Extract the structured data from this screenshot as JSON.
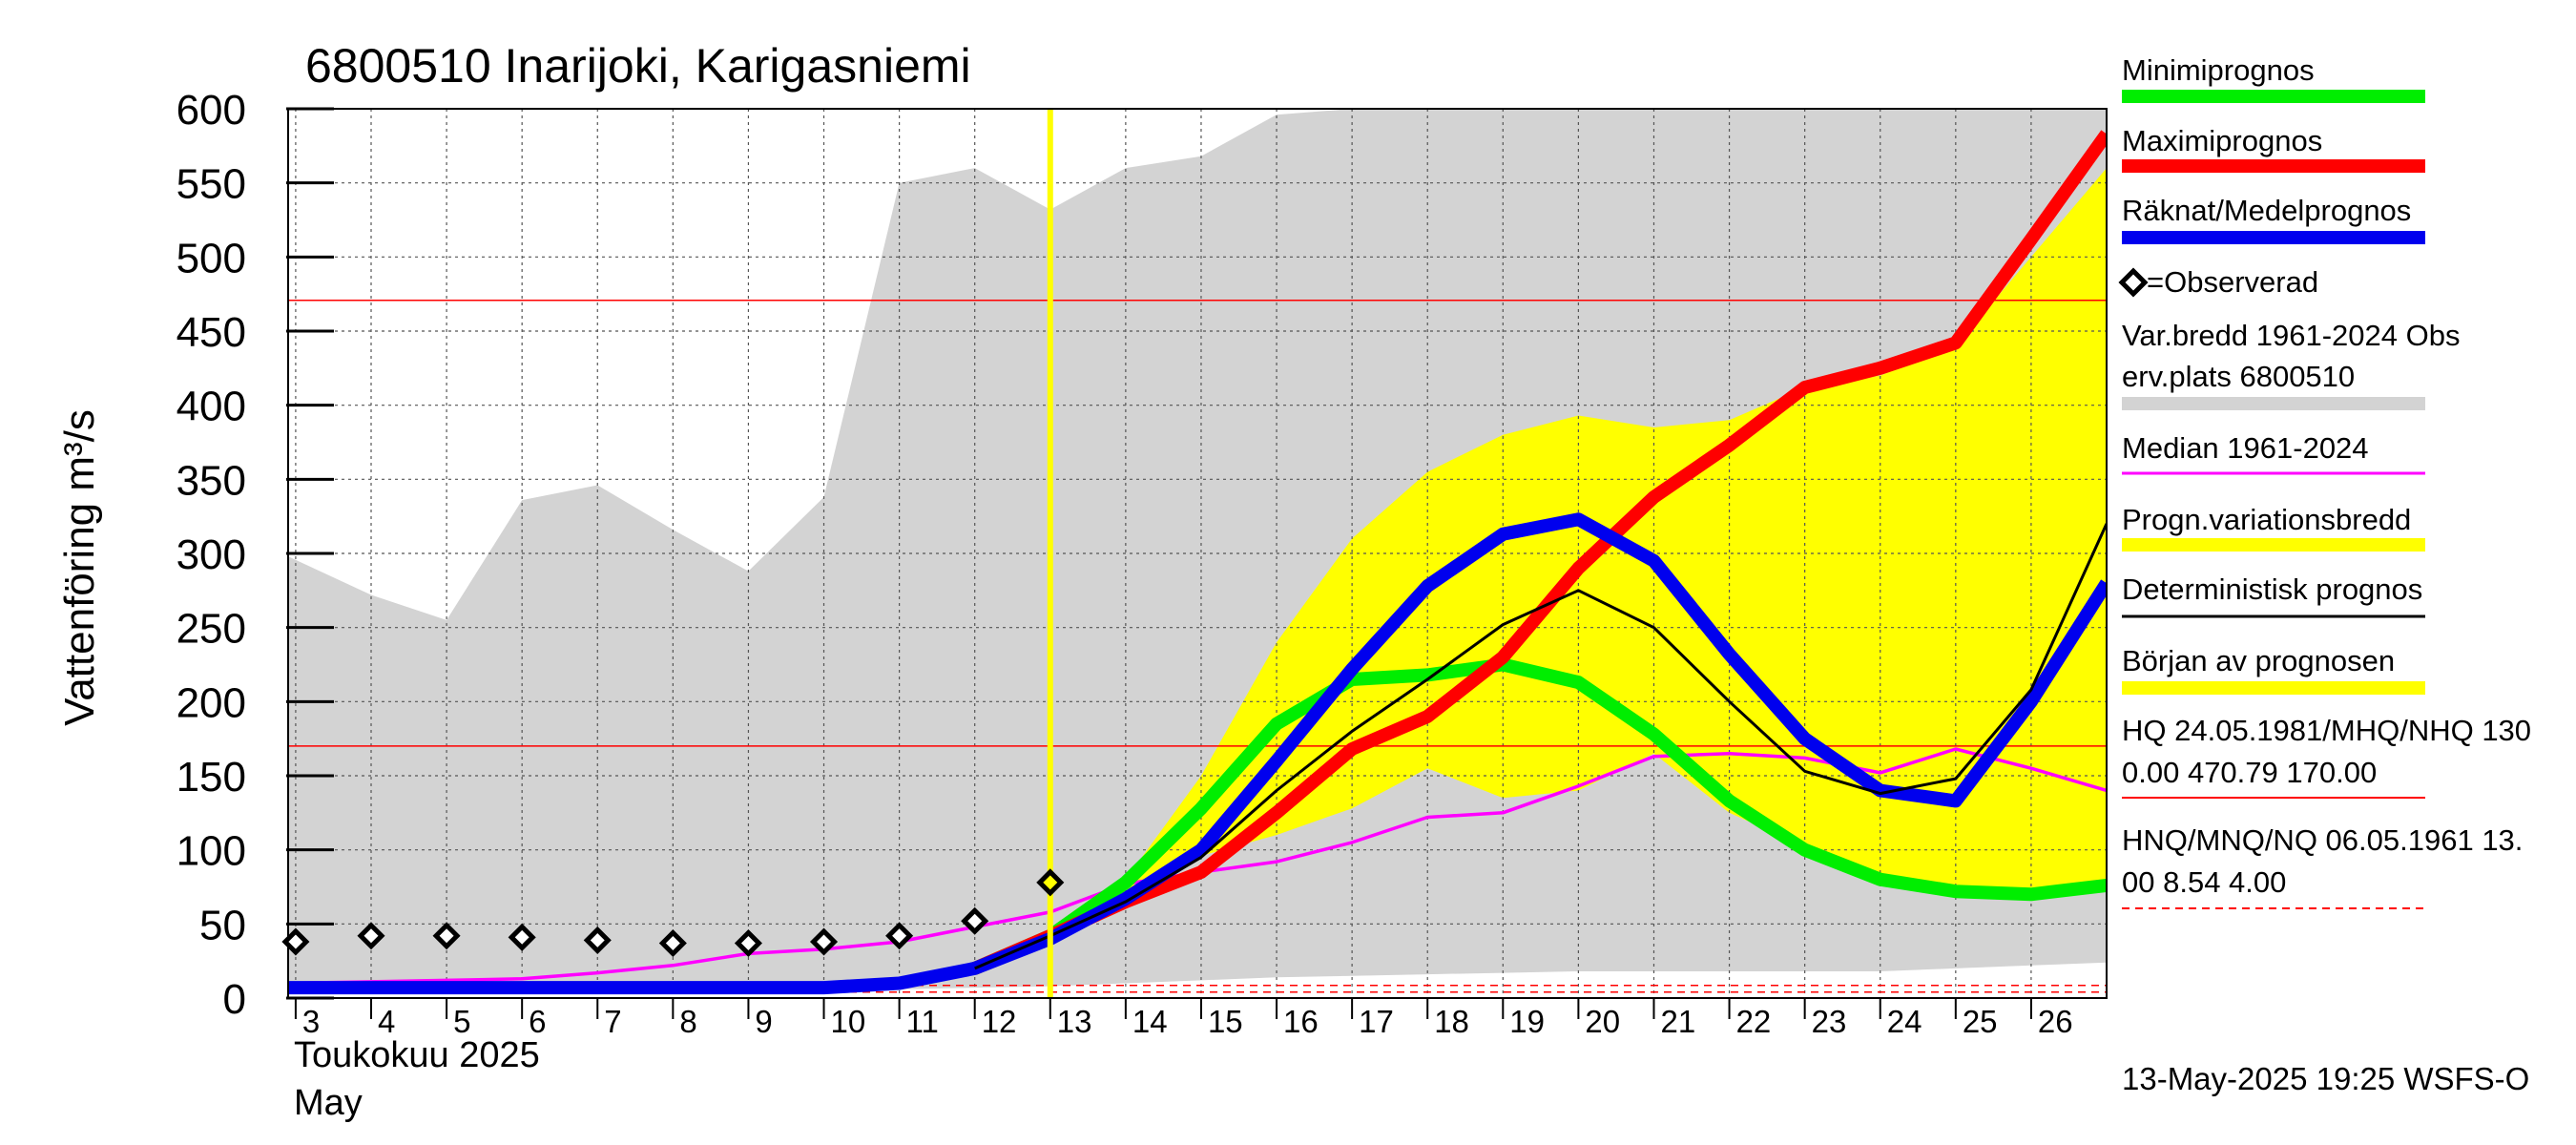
{
  "chart_data": {
    "type": "line",
    "title": "6800510 Inarijoki, Karigasniemi",
    "ylabel": "Vattenföring m³/s",
    "ylim": [
      0,
      600
    ],
    "yticks": [
      0,
      50,
      100,
      150,
      200,
      250,
      300,
      350,
      400,
      450,
      500,
      550,
      600
    ],
    "x_range": [
      2.9,
      27
    ],
    "x_ticks": [
      "3",
      "4",
      "5",
      "6",
      "7",
      "8",
      "9",
      "10",
      "11",
      "12",
      "13",
      "14",
      "15",
      "16",
      "17",
      "18",
      "19",
      "20",
      "21",
      "22",
      "23",
      "24",
      "25",
      "26"
    ],
    "month_label": "Toukokuu  2025",
    "month_label_en": "May",
    "forecast_start_day": 13,
    "grid": true,
    "legend_position": "right",
    "hlines": [
      {
        "name": "HQ",
        "value": 470.79,
        "color": "#ff0000",
        "style": "solid"
      },
      {
        "name": "MHQ",
        "value": 170.0,
        "color": "#ff0000",
        "style": "solid"
      },
      {
        "name": "MNQ",
        "value": 8.54,
        "color": "#ff0000",
        "style": "dashed"
      },
      {
        "name": "NQ",
        "value": 4.0,
        "color": "#ff0000",
        "style": "dashed"
      }
    ],
    "variation_band": {
      "days": [
        2.9,
        4,
        5,
        6,
        7,
        8,
        9,
        10,
        11,
        12,
        13,
        14,
        15,
        16,
        17,
        18,
        19,
        20,
        21,
        22,
        23,
        24,
        25,
        26,
        27
      ],
      "upper": [
        298,
        272,
        255,
        336,
        346,
        316,
        288,
        338,
        550,
        560,
        532,
        560,
        568,
        596,
        600,
        600,
        600,
        600,
        600,
        600,
        600,
        600,
        600,
        600,
        600
      ],
      "lower": [
        5,
        5,
        5,
        5,
        5,
        5,
        5,
        5,
        6,
        7,
        8,
        10,
        12,
        14,
        15,
        16,
        17,
        18,
        18,
        18,
        18,
        18,
        20,
        22,
        24
      ]
    },
    "forecast_band": {
      "days": [
        13,
        14,
        15,
        16,
        17,
        18,
        19,
        20,
        21,
        22,
        23,
        24,
        25,
        26,
        27
      ],
      "upper": [
        40,
        80,
        150,
        240,
        310,
        355,
        380,
        393,
        385,
        390,
        412,
        420,
        440,
        500,
        560
      ],
      "lower": [
        40,
        66,
        96,
        110,
        128,
        155,
        135,
        140,
        165,
        125,
        102,
        80,
        72,
        70,
        78
      ]
    },
    "series": [
      {
        "name": "Minimiprognos",
        "color": "#00ee00",
        "x": [
          12,
          13,
          14,
          15,
          16,
          17,
          18,
          19,
          20,
          21,
          22,
          23,
          24,
          25,
          26,
          27
        ],
        "y": [
          20,
          42,
          78,
          128,
          185,
          215,
          218,
          225,
          213,
          178,
          133,
          100,
          80,
          72,
          70,
          76
        ]
      },
      {
        "name": "Maximiprognos",
        "color": "#ff0000",
        "x": [
          12,
          13,
          14,
          15,
          16,
          17,
          18,
          19,
          20,
          21,
          22,
          23,
          24,
          25,
          26,
          27
        ],
        "y": [
          20,
          42,
          65,
          85,
          125,
          168,
          190,
          230,
          290,
          338,
          373,
          412,
          425,
          442,
          512,
          583
        ]
      },
      {
        "name": "Räknat/Medelprognos",
        "color": "#0000ee",
        "x": [
          2.9,
          4,
          5,
          6,
          7,
          8,
          9,
          10,
          11,
          12,
          13,
          14,
          15,
          16,
          17,
          18,
          19,
          20,
          21,
          22,
          23,
          24,
          25,
          26,
          27
        ],
        "y": [
          7,
          7,
          7,
          7,
          7,
          7,
          7,
          7,
          10,
          20,
          40,
          67,
          100,
          160,
          222,
          278,
          313,
          323,
          295,
          232,
          175,
          140,
          133,
          200,
          280
        ]
      },
      {
        "name": "Deterministisk prognos",
        "color": "#000000",
        "x": [
          12,
          13,
          14,
          15,
          16,
          17,
          18,
          19,
          20,
          21,
          22,
          23,
          24,
          25,
          26,
          27
        ],
        "y": [
          20,
          42,
          65,
          95,
          140,
          180,
          215,
          252,
          275,
          250,
          200,
          153,
          138,
          148,
          208,
          320
        ]
      },
      {
        "name": "Median 1961-2024",
        "color": "#ff00ff",
        "x": [
          2.9,
          4,
          5,
          6,
          7,
          8,
          9,
          10,
          11,
          12,
          13,
          14,
          15,
          16,
          17,
          18,
          19,
          20,
          21,
          22,
          23,
          24,
          25,
          26,
          27
        ],
        "y": [
          10,
          11,
          12,
          13,
          17,
          22,
          30,
          33,
          38,
          48,
          58,
          77,
          85,
          92,
          105,
          122,
          125,
          143,
          163,
          165,
          162,
          152,
          168,
          155,
          140
        ]
      }
    ],
    "observed": {
      "name": "=Observerad",
      "x": [
        3,
        4,
        5,
        6,
        7,
        8,
        9,
        10,
        11,
        12,
        13
      ],
      "y": [
        38,
        42,
        42,
        41,
        39,
        37,
        37,
        38,
        42,
        52,
        78
      ]
    }
  },
  "legend": {
    "min": "Minimiprognos",
    "max": "Maximiprognos",
    "mean": "Räknat/Medelprognos",
    "observed": "=Observerad",
    "varbredd_1": "Var.bredd 1961-2024   Obs",
    "varbredd_2": "erv.plats 6800510",
    "median": "Median 1961-2024",
    "progn_var": "Progn.variationsbredd",
    "determ": "Deterministisk prognos",
    "start": "Början av prognosen",
    "hq_1": "HQ 24.05.1981/MHQ/NHQ 130",
    "hq_2": "0.00 470.79 170.00",
    "hnq_1": "HNQ/MNQ/NQ 06.05.1961 13.",
    "hnq_2": "00 8.54 4.00"
  },
  "colors": {
    "variation_band": "#d3d3d3",
    "forecast_band": "#ffff00",
    "forecast_start_line": "#ffff00",
    "min": "#00ee00",
    "max": "#ff0000",
    "mean": "#0000ee",
    "median": "#ff00ff",
    "determ": "#000000",
    "reference": "#ff0000"
  },
  "footer": "13-May-2025 19:25 WSFS-O"
}
